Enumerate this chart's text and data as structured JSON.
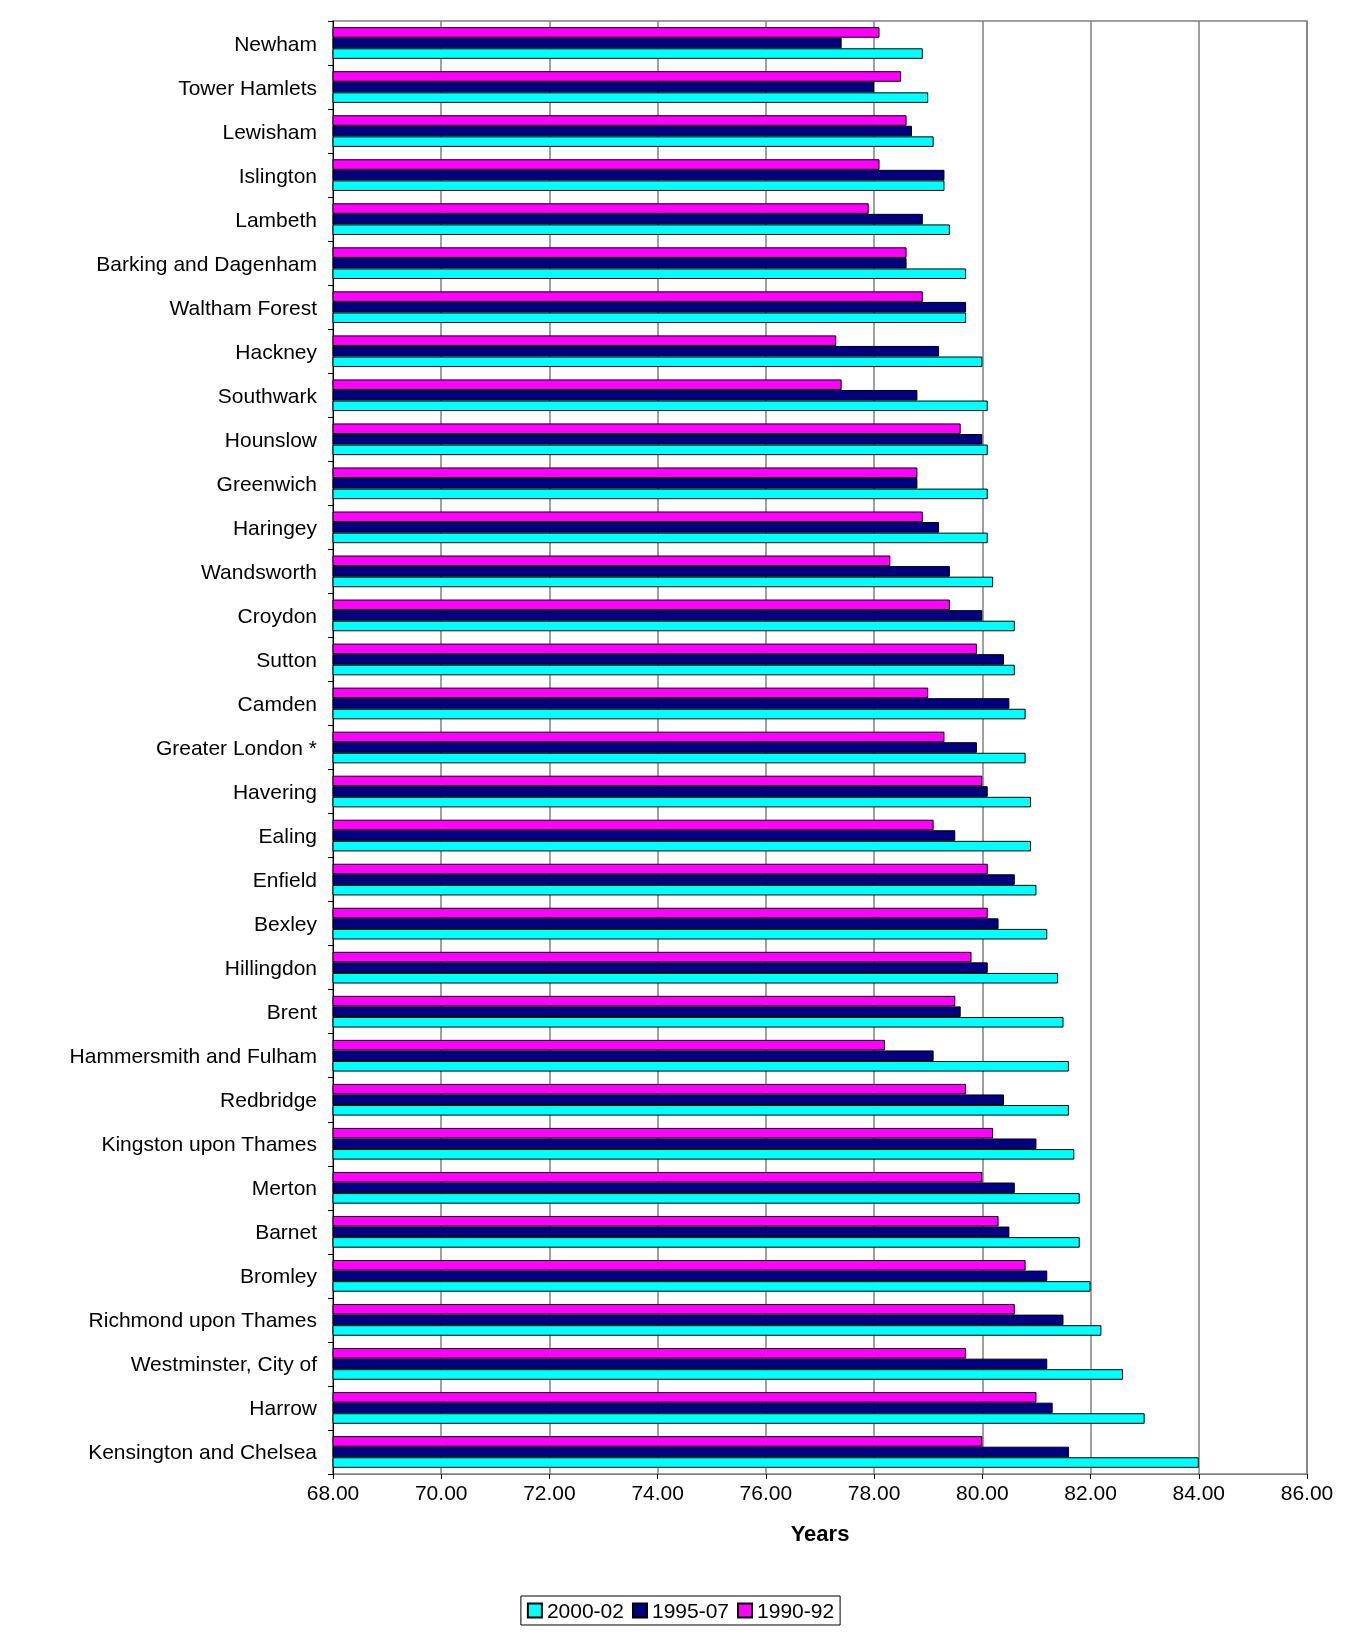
{
  "chart_data": {
    "type": "bar",
    "orientation": "horizontal",
    "xlabel": "Years",
    "categories": [
      "Newham",
      "Tower Hamlets",
      "Lewisham",
      "Islington",
      "Lambeth",
      "Barking and Dagenham",
      "Waltham Forest",
      "Hackney",
      "Southwark",
      "Hounslow",
      "Greenwich",
      "Haringey",
      "Wandsworth",
      "Croydon",
      "Sutton",
      "Camden",
      "Greater London *",
      "Havering",
      "Ealing",
      "Enfield",
      "Bexley",
      "Hillingdon",
      "Brent",
      "Hammersmith and Fulham",
      "Redbridge",
      "Kingston upon Thames",
      "Merton",
      "Barnet",
      "Bromley",
      "Richmond upon Thames",
      "Westminster, City of",
      "Harrow",
      "Kensington and Chelsea"
    ],
    "series": [
      {
        "name": "2000-02",
        "color": "#00ffff",
        "values": [
          78.9,
          79.0,
          79.1,
          79.3,
          79.4,
          79.7,
          79.7,
          80.0,
          80.1,
          80.1,
          80.1,
          80.1,
          80.2,
          80.6,
          80.6,
          80.8,
          80.8,
          80.9,
          80.9,
          81.0,
          81.2,
          81.4,
          81.5,
          81.6,
          81.6,
          81.7,
          81.8,
          81.8,
          82.0,
          82.2,
          82.6,
          83.0,
          84.0
        ]
      },
      {
        "name": "1995-07",
        "color": "#000080",
        "values": [
          77.4,
          78.0,
          78.7,
          79.3,
          78.9,
          78.6,
          79.7,
          79.2,
          78.8,
          80.0,
          78.8,
          79.2,
          79.4,
          80.0,
          80.4,
          80.5,
          79.9,
          80.1,
          79.5,
          80.6,
          80.3,
          80.1,
          79.6,
          79.1,
          80.4,
          81.0,
          80.6,
          80.5,
          81.2,
          81.5,
          81.2,
          81.3,
          81.6
        ]
      },
      {
        "name": "1990-92",
        "color": "#ff00ff",
        "values": [
          78.1,
          78.5,
          78.6,
          78.1,
          77.9,
          78.6,
          78.9,
          77.3,
          77.4,
          79.6,
          78.8,
          78.9,
          78.3,
          79.4,
          79.9,
          79.0,
          79.3,
          80.0,
          79.1,
          80.1,
          80.1,
          79.8,
          79.5,
          78.2,
          79.7,
          80.2,
          80.0,
          80.3,
          80.8,
          80.6,
          79.7,
          81.0,
          80.0
        ]
      }
    ],
    "xlim": [
      68,
      86
    ],
    "xticks": [
      {
        "value": 68,
        "label": "68.00"
      },
      {
        "value": 70,
        "label": "70.00"
      },
      {
        "value": 72,
        "label": "72.00"
      },
      {
        "value": 74,
        "label": "74.00"
      },
      {
        "value": 76,
        "label": "76.00"
      },
      {
        "value": 78,
        "label": "78.00"
      },
      {
        "value": 80,
        "label": "80.00"
      },
      {
        "value": 82,
        "label": "82.00"
      },
      {
        "value": 84,
        "label": "84.00"
      },
      {
        "value": 86,
        "label": "86.00"
      }
    ],
    "grid": "x",
    "legend": "bottom"
  }
}
